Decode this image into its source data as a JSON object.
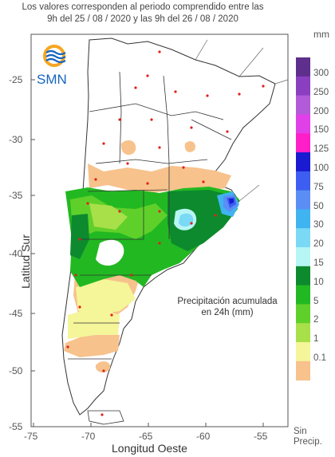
{
  "header": {
    "line1": "Los valores corresponden al periodo comprendido entre las",
    "line2": "9h del 25 / 08 / 2020  y las 9h del 26 / 08 / 2020"
  },
  "logo": {
    "text": "SMN"
  },
  "axes": {
    "xlabel": "Longitud Oeste",
    "ylabel": "Latitud Sur",
    "x_ticks": [
      "-75",
      "-70",
      "-65",
      "-60",
      "-55"
    ],
    "y_ticks": [
      "-25",
      "-30",
      "-35",
      "-40",
      "-45",
      "-50",
      "-55"
    ]
  },
  "annotation": {
    "line1": "Precipitación acumulada",
    "line2": "en 24h (mm)"
  },
  "legend": {
    "unit": "mm",
    "levels": [
      {
        "label": "300",
        "color": "#5e2f8c"
      },
      {
        "label": "250",
        "color": "#8a3fc0"
      },
      {
        "label": "200",
        "color": "#b25bd8"
      },
      {
        "label": "150",
        "color": "#e040e8"
      },
      {
        "label": "125",
        "color": "#ff1fc8"
      },
      {
        "label": "100",
        "color": "#1a1ad0"
      },
      {
        "label": "75",
        "color": "#3d5ef0"
      },
      {
        "label": "50",
        "color": "#5b8ef5"
      },
      {
        "label": "30",
        "color": "#3fb4f0"
      },
      {
        "label": "20",
        "color": "#7ad9f5"
      },
      {
        "label": "15",
        "color": "#b8f5f5"
      },
      {
        "label": "10",
        "color": "#0d8a2e"
      },
      {
        "label": "5",
        "color": "#22b822"
      },
      {
        "label": "2",
        "color": "#5fd02a"
      },
      {
        "label": "1",
        "color": "#a8e04a"
      },
      {
        "label": "0.1",
        "color": "#f5f59a"
      },
      {
        "label": "",
        "color": "#f7c28c"
      }
    ],
    "no_precip_line1": "Sin",
    "no_precip_line2": "Precip."
  },
  "colors": {
    "land": "#ffffff",
    "border": "#333333",
    "station": "#e0201e",
    "accent": "#1565c0"
  }
}
